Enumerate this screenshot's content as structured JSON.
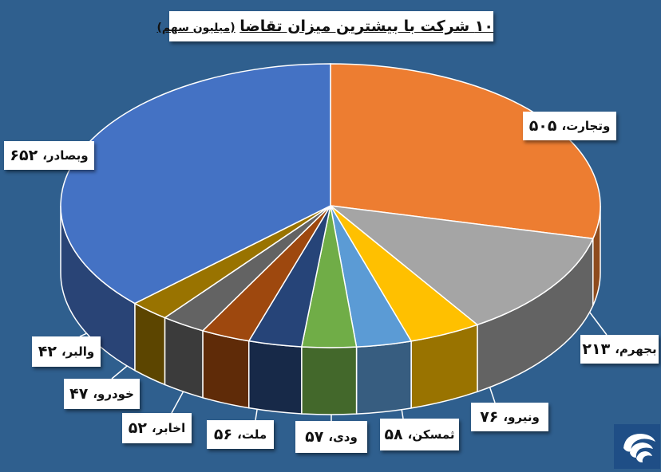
{
  "title": "۱۰ شرکت با بیشترین میزان تقاضا",
  "subtitle": "(میلیون سهم)",
  "logo_icon": "swirl-logo-icon",
  "chart_data": {
    "type": "pie",
    "title": "۱۰ شرکت با بیشترین میزان تقاضا (میلیون سهم)",
    "units": "میلیون سهم",
    "categories": [
      "وتجارت",
      "بجهرم",
      "ونیرو",
      "ثمسکن",
      "ودی",
      "ملت",
      "اخابر",
      "خودرو",
      "والبر",
      "وبصادر"
    ],
    "values": [
      505,
      213,
      76,
      58,
      57,
      56,
      52,
      47,
      42,
      652
    ],
    "value_labels": [
      "۵۰۵",
      "۲۱۳",
      "۷۶",
      "۵۸",
      "۵۷",
      "۵۶",
      "۵۲",
      "۴۷",
      "۴۲",
      "۶۵۲"
    ],
    "colors": [
      "#ed7d31",
      "#a5a5a5",
      "#ffc000",
      "#5b9bd5",
      "#70ad47",
      "#264478",
      "#9e480e",
      "#636363",
      "#997300",
      "#4472c4"
    ],
    "style": "3d-pie",
    "legend": "none"
  }
}
